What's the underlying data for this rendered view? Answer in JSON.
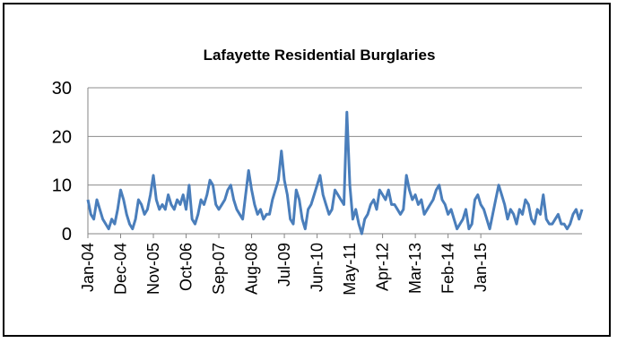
{
  "chart_data": {
    "type": "line",
    "title": "Lafayette Residential Burglaries",
    "xlabel": "",
    "ylabel": "",
    "ylim": [
      0,
      30
    ],
    "yticks": [
      0,
      10,
      20,
      30
    ],
    "grid": true,
    "legend": "none",
    "x_tick_labels": [
      "Jan-04",
      "Dec-04",
      "Nov-05",
      "Oct-06",
      "Sep-07",
      "Aug-08",
      "Jul-09",
      "Jun-10",
      "May-11",
      "Apr-12",
      "Mar-13",
      "Feb-14",
      "Jan-15"
    ],
    "x_start": "Jan-04",
    "x_end": "Jun-15",
    "series": [
      {
        "color": "#4a7ebb",
        "values": [
          7,
          4,
          3,
          7,
          5,
          3,
          2,
          1,
          3,
          2,
          5,
          9,
          7,
          4,
          2,
          1,
          3,
          7,
          6,
          4,
          5,
          8,
          12,
          7,
          5,
          6,
          5,
          8,
          6,
          5,
          7,
          6,
          8,
          5,
          10,
          3,
          2,
          4,
          7,
          6,
          8,
          11,
          10,
          6,
          5,
          6,
          7,
          9,
          10,
          7,
          5,
          4,
          3,
          8,
          13,
          9,
          6,
          4,
          5,
          3,
          4,
          4,
          7,
          9,
          11,
          17,
          11,
          8,
          3,
          2,
          9,
          7,
          3,
          1,
          5,
          6,
          8,
          10,
          12,
          8,
          6,
          4,
          5,
          9,
          8,
          7,
          6,
          25,
          10,
          3,
          5,
          2,
          0,
          3,
          4,
          6,
          7,
          5,
          9,
          8,
          7,
          9,
          6,
          6,
          5,
          4,
          5,
          12,
          9,
          7,
          8,
          6,
          7,
          4,
          5,
          6,
          7,
          9,
          10,
          7,
          6,
          4,
          5,
          3,
          1,
          2,
          3,
          5,
          1,
          2,
          7,
          8,
          6,
          5,
          3,
          1,
          4,
          7,
          10,
          8,
          6,
          3,
          5,
          4,
          2,
          5,
          4,
          7,
          6,
          3,
          2,
          5,
          4,
          8,
          3,
          2,
          2,
          3,
          4,
          2,
          2,
          1,
          2,
          4,
          5,
          3,
          5
        ]
      }
    ]
  }
}
